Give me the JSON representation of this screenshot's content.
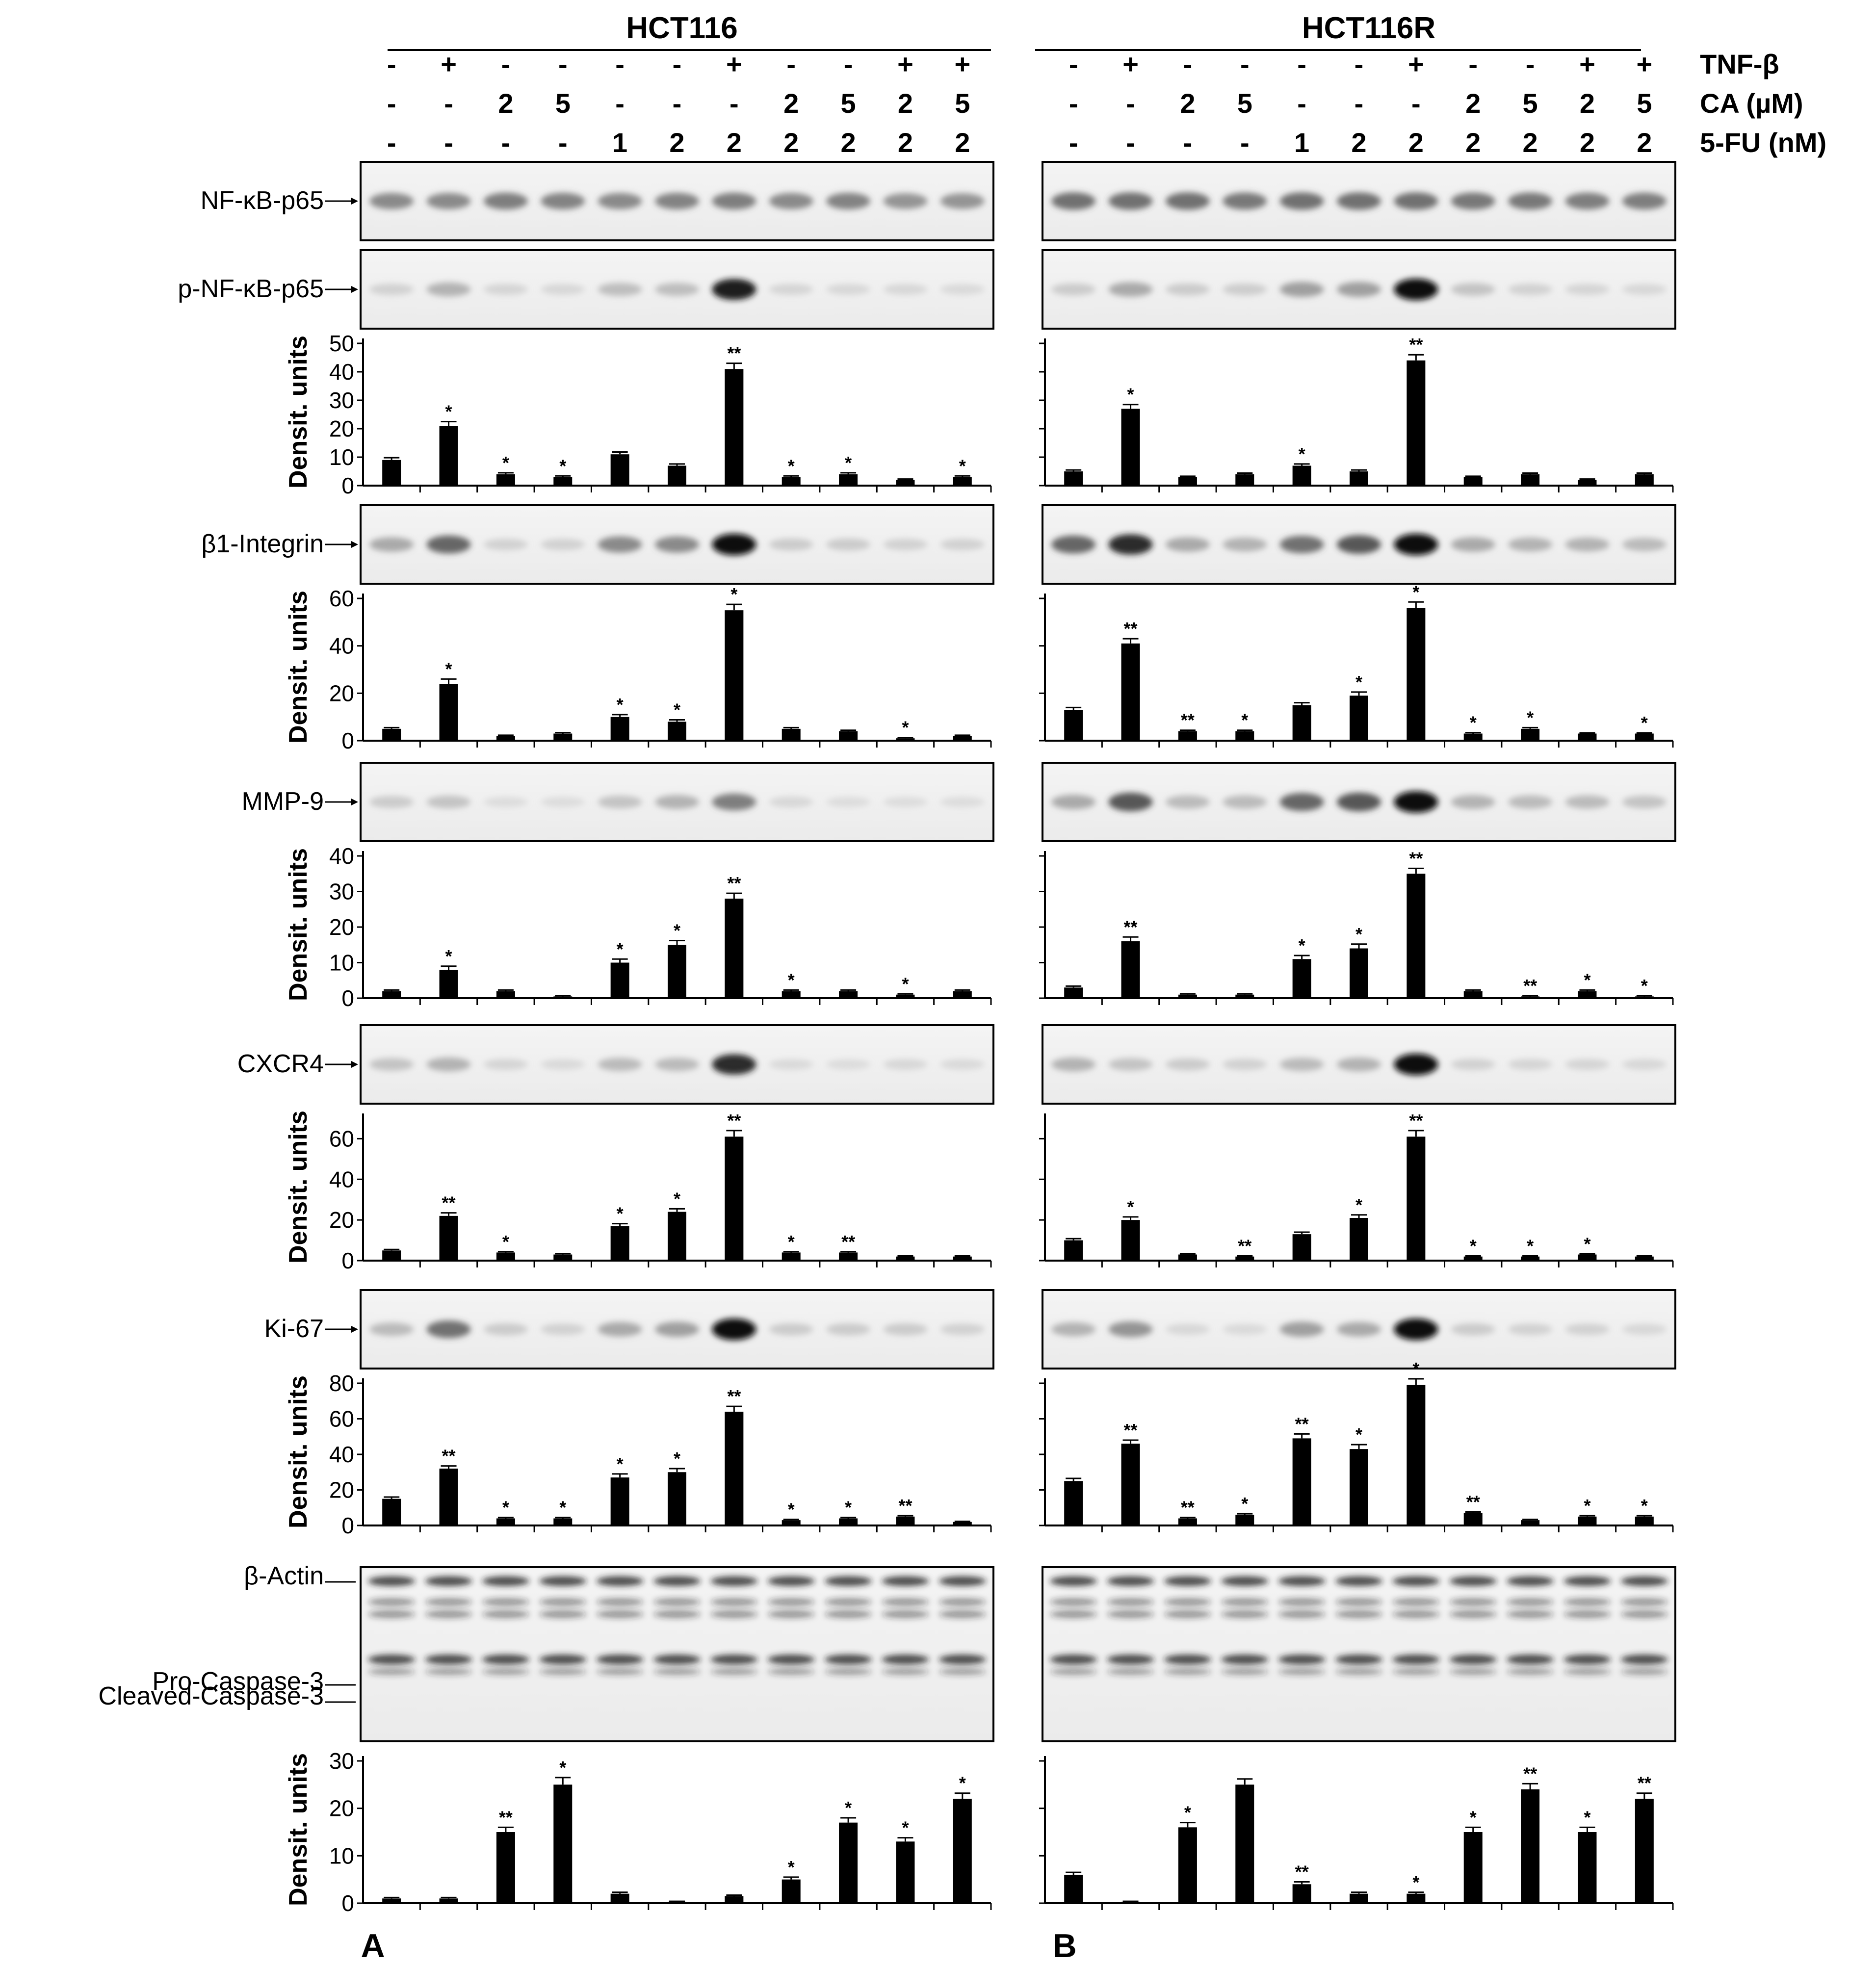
{
  "panels": [
    {
      "header": "HCT116",
      "letter": "A"
    },
    {
      "header": "HCT116R",
      "letter": "B"
    }
  ],
  "treatments": {
    "labels": [
      "TNF-β",
      "CA (µM)",
      "5-FU (nM)"
    ],
    "tnf": [
      "-",
      "+",
      "-",
      "-",
      "-",
      "-",
      "+",
      "-",
      "-",
      "+",
      "+"
    ],
    "ca": [
      "-",
      "-",
      "2",
      "5",
      "-",
      "-",
      "-",
      "2",
      "5",
      "2",
      "5"
    ],
    "fu": [
      "-",
      "-",
      "-",
      "-",
      "1",
      "2",
      "2",
      "2",
      "2",
      "2",
      "2"
    ]
  },
  "blots": [
    {
      "label": "NF-κB-p65",
      "intensity": [
        [
          0.55,
          0.55,
          0.6,
          0.58,
          0.55,
          0.58,
          0.6,
          0.55,
          0.58,
          0.5,
          0.5
        ],
        [
          0.65,
          0.65,
          0.65,
          0.62,
          0.65,
          0.65,
          0.65,
          0.62,
          0.62,
          0.6,
          0.6
        ]
      ]
    },
    {
      "label": "p-NF-κB-p65",
      "intensity": [
        [
          0.15,
          0.35,
          0.12,
          0.1,
          0.28,
          0.28,
          0.95,
          0.12,
          0.1,
          0.1,
          0.08
        ],
        [
          0.2,
          0.4,
          0.2,
          0.18,
          0.45,
          0.45,
          1.0,
          0.25,
          0.15,
          0.12,
          0.1
        ]
      ]
    },
    {
      "label": "β1-Integrin",
      "intensity": [
        [
          0.4,
          0.7,
          0.15,
          0.15,
          0.55,
          0.55,
          1.0,
          0.2,
          0.2,
          0.15,
          0.15
        ],
        [
          0.7,
          0.9,
          0.4,
          0.35,
          0.65,
          0.75,
          1.0,
          0.4,
          0.35,
          0.35,
          0.3
        ]
      ]
    },
    {
      "label": "MMP-9",
      "intensity": [
        [
          0.2,
          0.25,
          0.05,
          0.05,
          0.25,
          0.35,
          0.6,
          0.1,
          0.05,
          0.05,
          0.05
        ],
        [
          0.4,
          0.75,
          0.3,
          0.3,
          0.7,
          0.75,
          1.0,
          0.35,
          0.3,
          0.3,
          0.25
        ]
      ]
    },
    {
      "label": "CXCR4",
      "intensity": [
        [
          0.25,
          0.35,
          0.12,
          0.08,
          0.3,
          0.3,
          0.9,
          0.08,
          0.06,
          0.1,
          0.08
        ],
        [
          0.35,
          0.25,
          0.2,
          0.15,
          0.3,
          0.35,
          1.0,
          0.15,
          0.12,
          0.12,
          0.1
        ]
      ]
    },
    {
      "label": "Ki-67",
      "intensity": [
        [
          0.3,
          0.65,
          0.2,
          0.15,
          0.4,
          0.45,
          1.0,
          0.2,
          0.2,
          0.2,
          0.15
        ],
        [
          0.35,
          0.5,
          0.1,
          0.08,
          0.45,
          0.4,
          1.0,
          0.2,
          0.15,
          0.15,
          0.1
        ]
      ]
    }
  ],
  "caspase_blot": {
    "labels": [
      "β-Actin",
      "Pro-Caspase-3",
      "Cleaved-Caspase-3"
    ]
  },
  "chart_data": [
    {
      "type": "bar",
      "panel": "A",
      "blot": "p-NF-κB-p65",
      "ylabel": "Densit. units",
      "ylim": [
        0,
        50
      ],
      "yticks": [
        0,
        10,
        20,
        30,
        40,
        50
      ],
      "values": [
        9,
        21,
        4,
        3,
        11,
        7,
        41,
        3,
        4,
        2,
        3
      ],
      "errors": [
        0.8,
        1.5,
        0.5,
        0.4,
        0.8,
        0.6,
        2.0,
        0.4,
        0.5,
        0.3,
        0.4
      ],
      "significance": [
        "",
        "*",
        "*",
        "*",
        "",
        "",
        "**",
        "*",
        "*",
        "",
        "*"
      ]
    },
    {
      "type": "bar",
      "panel": "B",
      "blot": "p-NF-κB-p65",
      "ylabel": "",
      "ylim": [
        0,
        50
      ],
      "values": [
        5,
        27,
        3,
        4,
        7,
        5,
        44,
        3,
        4,
        2,
        4
      ],
      "errors": [
        0.5,
        1.5,
        0.3,
        0.4,
        0.6,
        0.5,
        2.0,
        0.3,
        0.4,
        0.3,
        0.4
      ],
      "significance": [
        "",
        "*",
        "",
        "",
        "*",
        "",
        "**",
        "",
        "",
        "",
        ""
      ]
    },
    {
      "type": "bar",
      "panel": "A",
      "blot": "β1-Integrin",
      "ylabel": "Densit. units",
      "ylim": [
        0,
        60
      ],
      "yticks": [
        0,
        20,
        40,
        60
      ],
      "values": [
        5,
        24,
        2,
        3,
        10,
        8,
        55,
        5,
        4,
        1,
        2
      ],
      "errors": [
        0.5,
        2.0,
        0.3,
        0.4,
        1.0,
        0.8,
        2.5,
        0.5,
        0.4,
        0.3,
        0.3
      ],
      "significance": [
        "",
        "*",
        "",
        "",
        "*",
        "*",
        "*",
        "",
        "",
        "*",
        ""
      ]
    },
    {
      "type": "bar",
      "panel": "B",
      "blot": "β1-Integrin",
      "ylabel": "",
      "ylim": [
        0,
        60
      ],
      "values": [
        13,
        41,
        4,
        4,
        15,
        19,
        56,
        3,
        5,
        3,
        3
      ],
      "errors": [
        1.0,
        2.0,
        0.4,
        0.4,
        1.0,
        1.5,
        2.5,
        0.4,
        0.5,
        0.3,
        0.3
      ],
      "significance": [
        "",
        "**",
        "**",
        "*",
        "",
        "*",
        "*",
        "*",
        "*",
        "",
        "*"
      ]
    },
    {
      "type": "bar",
      "panel": "A",
      "blot": "MMP-9",
      "ylabel": "Densit. units",
      "ylim": [
        0,
        40
      ],
      "yticks": [
        0,
        10,
        20,
        30,
        40
      ],
      "values": [
        2,
        8,
        2,
        0.5,
        10,
        15,
        28,
        2,
        2,
        1,
        2
      ],
      "errors": [
        0.3,
        1.0,
        0.3,
        0.2,
        1.0,
        1.2,
        1.5,
        0.3,
        0.3,
        0.2,
        0.3
      ],
      "significance": [
        "",
        "*",
        "",
        "",
        "*",
        "*",
        "**",
        "*",
        "",
        "*",
        ""
      ]
    },
    {
      "type": "bar",
      "panel": "B",
      "blot": "MMP-9",
      "ylabel": "",
      "ylim": [
        0,
        40
      ],
      "values": [
        3,
        16,
        1,
        1,
        11,
        14,
        35,
        2,
        0.5,
        2,
        0.5
      ],
      "errors": [
        0.4,
        1.2,
        0.2,
        0.2,
        1.0,
        1.2,
        1.5,
        0.3,
        0.2,
        0.3,
        0.2
      ],
      "significance": [
        "",
        "**",
        "",
        "",
        "*",
        "*",
        "**",
        "",
        "**",
        "*",
        "*"
      ]
    },
    {
      "type": "bar",
      "panel": "A",
      "blot": "CXCR4",
      "ylabel": "Densit. units",
      "ylim": [
        0,
        70
      ],
      "yticks": [
        0,
        20,
        40,
        60
      ],
      "values": [
        5,
        22,
        4,
        3,
        17,
        24,
        61,
        4,
        4,
        2,
        2
      ],
      "errors": [
        0.5,
        1.5,
        0.4,
        0.4,
        1.2,
        1.5,
        3.0,
        0.4,
        0.4,
        0.3,
        0.3
      ],
      "significance": [
        "",
        "**",
        "*",
        "",
        "*",
        "*",
        "**",
        "*",
        "**",
        "",
        ""
      ]
    },
    {
      "type": "bar",
      "panel": "B",
      "blot": "CXCR4",
      "ylabel": "",
      "ylim": [
        0,
        70
      ],
      "values": [
        10,
        20,
        3,
        2,
        13,
        21,
        61,
        2,
        2,
        3,
        2
      ],
      "errors": [
        0.8,
        1.5,
        0.3,
        0.3,
        1.0,
        1.5,
        3.0,
        0.3,
        0.3,
        0.3,
        0.3
      ],
      "significance": [
        "",
        "*",
        "",
        "**",
        "",
        "*",
        "**",
        "*",
        "*",
        "*",
        ""
      ]
    },
    {
      "type": "bar",
      "panel": "A",
      "blot": "Ki-67",
      "ylabel": "Densit. units",
      "ylim": [
        0,
        80
      ],
      "yticks": [
        0,
        20,
        40,
        60,
        80
      ],
      "values": [
        15,
        32,
        4,
        4,
        27,
        30,
        64,
        3,
        4,
        5,
        2
      ],
      "errors": [
        1.0,
        1.5,
        0.5,
        0.5,
        2.0,
        2.0,
        3.0,
        0.4,
        0.5,
        0.5,
        0.3
      ],
      "significance": [
        "",
        "**",
        "*",
        "*",
        "*",
        "*",
        "**",
        "*",
        "*",
        "**",
        ""
      ]
    },
    {
      "type": "bar",
      "panel": "B",
      "blot": "Ki-67",
      "ylabel": "",
      "ylim": [
        0,
        80
      ],
      "values": [
        25,
        46,
        4,
        6,
        49,
        43,
        79,
        7,
        3,
        5,
        5
      ],
      "errors": [
        1.5,
        2.0,
        0.5,
        0.6,
        2.5,
        2.5,
        3.5,
        0.6,
        0.4,
        0.5,
        0.5
      ],
      "significance": [
        "",
        "**",
        "**",
        "*",
        "**",
        "*",
        "*",
        "**",
        "",
        "*",
        "*"
      ]
    },
    {
      "type": "bar",
      "panel": "A",
      "blot": "Cleaved-Caspase-3",
      "ylabel": "Densit. units",
      "ylim": [
        0,
        30
      ],
      "yticks": [
        0,
        10,
        20,
        30
      ],
      "values": [
        1,
        1,
        15,
        25,
        2,
        0.3,
        1.5,
        5,
        17,
        13,
        22
      ],
      "errors": [
        0.2,
        0.2,
        1.0,
        1.5,
        0.3,
        0.1,
        0.2,
        0.5,
        1.0,
        0.8,
        1.2
      ],
      "significance": [
        "",
        "",
        "**",
        "*",
        "",
        "",
        "",
        "*",
        "*",
        "*",
        "*"
      ]
    },
    {
      "type": "bar",
      "panel": "B",
      "blot": "Cleaved-Caspase-3",
      "ylabel": "",
      "ylim": [
        0,
        30
      ],
      "values": [
        6,
        0.3,
        16,
        25,
        4,
        2,
        2,
        15,
        24,
        15,
        22
      ],
      "errors": [
        0.5,
        0.1,
        1.0,
        1.2,
        0.5,
        0.3,
        0.3,
        1.0,
        1.2,
        1.0,
        1.2
      ],
      "significance": [
        "",
        "",
        "*",
        "",
        "**",
        "",
        "*",
        "*",
        "**",
        "*",
        "**"
      ]
    }
  ]
}
